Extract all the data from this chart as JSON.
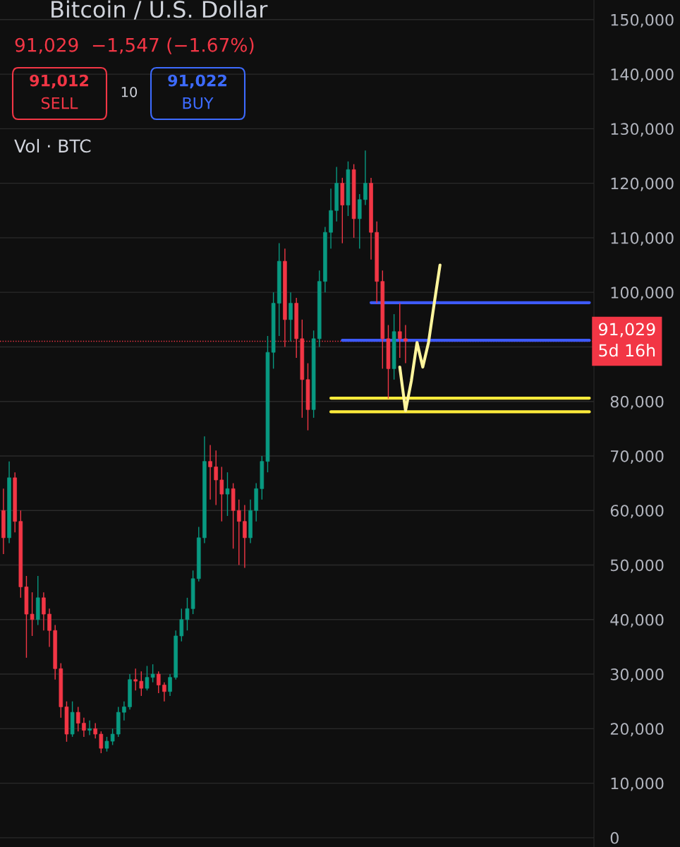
{
  "chart_data": {
    "type": "candlestick",
    "title": "Bitcoin / U.S. Dollar",
    "subtitle": "91,029  −1,547 (−1.67%)",
    "annotations": [
      "91,012",
      "SELL",
      "10",
      "91,022",
      "BUY",
      "Vol · BTC"
    ],
    "categories": [
      null,
      null,
      null,
      null,
      null,
      null,
      null,
      null,
      null,
      null,
      null,
      null,
      null,
      null,
      null,
      null,
      null,
      null,
      null,
      null,
      null,
      null,
      null,
      null,
      null,
      null,
      null,
      null,
      null,
      null,
      null,
      null,
      null,
      null,
      null,
      null,
      null,
      null,
      null,
      null,
      null,
      null,
      null,
      null,
      null,
      null,
      null,
      null,
      null,
      null,
      null,
      null,
      null,
      null,
      null,
      null,
      null,
      null,
      null,
      null,
      null,
      null,
      null,
      null,
      null,
      null,
      null,
      null,
      null,
      null,
      null,
      null,
      null,
      null,
      null,
      null,
      null,
      null,
      null,
      null,
      null,
      null,
      null,
      null,
      null,
      null,
      null,
      null,
      null,
      null,
      null,
      null,
      null,
      null,
      null,
      null,
      null,
      null,
      null,
      null,
      null,
      null,
      null
    ],
    "ohlc": [
      [
        60000,
        64000,
        52000,
        55000
      ],
      [
        55000,
        69000,
        54000,
        66000
      ],
      [
        66000,
        67000,
        56000,
        58000
      ],
      [
        58000,
        60000,
        44000,
        46000
      ],
      [
        46000,
        48000,
        33000,
        41000
      ],
      [
        41000,
        45000,
        37000,
        40000
      ],
      [
        40000,
        48000,
        39000,
        44000
      ],
      [
        44000,
        45000,
        38000,
        41000
      ],
      [
        41000,
        42000,
        35000,
        38000
      ],
      [
        38000,
        39000,
        29000,
        31000
      ],
      [
        31000,
        32000,
        22000,
        24000
      ],
      [
        24000,
        25000,
        17600,
        19000
      ],
      [
        19000,
        25000,
        18500,
        23000
      ],
      [
        23000,
        24000,
        19500,
        21000
      ],
      [
        21000,
        22000,
        18500,
        19700
      ],
      [
        19700,
        21500,
        18800,
        20000
      ],
      [
        20000,
        21000,
        18200,
        19000
      ],
      [
        19000,
        19500,
        15500,
        16400
      ],
      [
        16400,
        18500,
        15800,
        17700
      ],
      [
        17700,
        20000,
        17000,
        19000
      ],
      [
        19000,
        24000,
        18500,
        23000
      ],
      [
        23000,
        25000,
        21500,
        24000
      ],
      [
        24000,
        30000,
        23500,
        29000
      ],
      [
        29000,
        31000,
        27000,
        28700
      ],
      [
        28700,
        30500,
        26000,
        27400
      ],
      [
        27400,
        31500,
        27000,
        29400
      ],
      [
        29400,
        31800,
        28500,
        30000
      ],
      [
        30000,
        30500,
        26500,
        28000
      ],
      [
        28000,
        28500,
        25000,
        26800
      ],
      [
        26800,
        30000,
        26000,
        29400
      ],
      [
        29400,
        38000,
        29000,
        37000
      ],
      [
        37000,
        42000,
        36000,
        40000
      ],
      [
        40000,
        44000,
        38000,
        42000
      ],
      [
        42000,
        49000,
        41000,
        47500
      ],
      [
        47500,
        57000,
        47000,
        55000
      ],
      [
        55000,
        73600,
        54000,
        69000
      ],
      [
        69000,
        72000,
        62000,
        68000
      ],
      [
        68000,
        71000,
        61000,
        65600
      ],
      [
        65600,
        68000,
        58000,
        63000
      ],
      [
        63000,
        67000,
        59000,
        64000
      ],
      [
        64000,
        65000,
        53000,
        60000
      ],
      [
        60000,
        62000,
        50000,
        58000
      ],
      [
        58000,
        61000,
        49500,
        55000
      ],
      [
        55000,
        62000,
        54000,
        60000
      ],
      [
        60000,
        65000,
        58000,
        64000
      ],
      [
        64000,
        70000,
        62000,
        69000
      ],
      [
        69000,
        92000,
        67000,
        89000
      ],
      [
        89000,
        100000,
        86000,
        98000
      ],
      [
        98000,
        109000,
        92000,
        105700
      ],
      [
        105700,
        108000,
        90000,
        95000
      ],
      [
        95000,
        100000,
        91000,
        98000
      ],
      [
        98000,
        99000,
        88000,
        91500
      ],
      [
        91500,
        95000,
        77000,
        84000
      ],
      [
        84000,
        87000,
        74700,
        78500
      ],
      [
        78500,
        93000,
        77000,
        91500
      ],
      [
        91500,
        104000,
        90000,
        102000
      ],
      [
        102000,
        112000,
        100000,
        111000
      ],
      [
        111000,
        119000,
        108000,
        115000
      ],
      [
        115000,
        123000,
        113000,
        120000
      ],
      [
        120000,
        121000,
        109000,
        116000
      ],
      [
        116000,
        124000,
        114000,
        122500
      ],
      [
        122500,
        123500,
        110000,
        113500
      ],
      [
        113500,
        118000,
        108000,
        117000
      ],
      [
        117000,
        126000,
        116000,
        120000
      ],
      [
        120000,
        121000,
        106000,
        111000
      ],
      [
        111000,
        113000,
        98000,
        102000
      ],
      [
        102000,
        104000,
        86000,
        91500
      ],
      [
        91500,
        94000,
        80500,
        86000
      ],
      [
        86000,
        96000,
        84000,
        92800
      ],
      [
        92800,
        98000,
        88000,
        91500
      ],
      [
        91500,
        94000,
        87000,
        91029
      ],
      null,
      null,
      null,
      null,
      null,
      null,
      null,
      null,
      null,
      null,
      null,
      null,
      null,
      null,
      null,
      null,
      null,
      null,
      null,
      null,
      null,
      null,
      null,
      null,
      null,
      null,
      null,
      null,
      null,
      null,
      null,
      null
    ],
    "series": [
      {
        "type": "line",
        "color": "#3d5afe",
        "values": [
          null,
          null,
          null,
          null,
          null,
          null,
          null,
          null,
          null,
          null,
          null,
          null,
          null,
          null,
          null,
          null,
          null,
          null,
          null,
          null,
          null,
          null,
          null,
          null,
          null,
          null,
          null,
          null,
          null,
          null,
          null,
          null,
          null,
          null,
          null,
          null,
          null,
          null,
          null,
          null,
          null,
          null,
          null,
          null,
          null,
          null,
          null,
          null,
          null,
          null,
          null,
          null,
          null,
          null,
          null,
          null,
          null,
          null,
          null,
          null,
          null,
          null,
          null,
          null,
          98100,
          98100,
          98100,
          98100,
          98100,
          98100,
          98100,
          98100,
          98100,
          98100,
          98100,
          98100,
          98100,
          98100,
          98100,
          98100,
          98100,
          98100,
          98100,
          98100,
          98100,
          98100,
          98100,
          98100,
          98100,
          98100,
          98100,
          98100,
          98100,
          98100,
          98100,
          98100,
          98100,
          98100,
          98100,
          98100,
          98100,
          98100,
          98100
        ]
      },
      {
        "type": "line",
        "color": "#3d5afe",
        "values": [
          null,
          null,
          null,
          null,
          null,
          null,
          null,
          null,
          null,
          null,
          null,
          null,
          null,
          null,
          null,
          null,
          null,
          null,
          null,
          null,
          null,
          null,
          null,
          null,
          null,
          null,
          null,
          null,
          null,
          null,
          null,
          null,
          null,
          null,
          null,
          null,
          null,
          null,
          null,
          null,
          null,
          null,
          null,
          null,
          null,
          null,
          null,
          null,
          null,
          null,
          null,
          null,
          null,
          null,
          null,
          null,
          null,
          null,
          null,
          91200,
          91200,
          91200,
          91200,
          91200,
          91200,
          91200,
          91200,
          91200,
          91200,
          91200,
          91200,
          91200,
          91200,
          91200,
          91200,
          91200,
          91200,
          91200,
          91200,
          91200,
          91200,
          91200,
          91200,
          91200,
          91200,
          91200,
          91200,
          91200,
          91200,
          91200,
          91200,
          91200,
          91200,
          91200,
          91200,
          91200,
          91200,
          91200,
          91200,
          91200,
          91200,
          91200,
          91200
        ]
      },
      {
        "type": "line",
        "color": "#ffeb3b",
        "values": [
          null,
          null,
          null,
          null,
          null,
          null,
          null,
          null,
          null,
          null,
          null,
          null,
          null,
          null,
          null,
          null,
          null,
          null,
          null,
          null,
          null,
          null,
          null,
          null,
          null,
          null,
          null,
          null,
          null,
          null,
          null,
          null,
          null,
          null,
          null,
          null,
          null,
          null,
          null,
          null,
          null,
          null,
          null,
          null,
          null,
          null,
          null,
          null,
          null,
          null,
          null,
          null,
          null,
          null,
          null,
          null,
          null,
          80600,
          80600,
          80600,
          80600,
          80600,
          80600,
          80600,
          80600,
          80600,
          80600,
          80600,
          80600,
          80600,
          80600,
          80600,
          80600,
          80600,
          80600,
          80600,
          80600,
          80600,
          80600,
          80600,
          80600,
          80600,
          80600,
          80600,
          80600,
          80600,
          80600,
          80600,
          80600,
          80600,
          80600,
          80600,
          80600,
          80600,
          80600,
          80600,
          80600,
          80600,
          80600,
          80600,
          80600,
          80600,
          80600
        ]
      },
      {
        "type": "line",
        "color": "#ffeb3b",
        "values": [
          null,
          null,
          null,
          null,
          null,
          null,
          null,
          null,
          null,
          null,
          null,
          null,
          null,
          null,
          null,
          null,
          null,
          null,
          null,
          null,
          null,
          null,
          null,
          null,
          null,
          null,
          null,
          null,
          null,
          null,
          null,
          null,
          null,
          null,
          null,
          null,
          null,
          null,
          null,
          null,
          null,
          null,
          null,
          null,
          null,
          null,
          null,
          null,
          null,
          null,
          null,
          null,
          null,
          null,
          null,
          null,
          null,
          78100,
          78100,
          78100,
          78100,
          78100,
          78100,
          78100,
          78100,
          78100,
          78100,
          78100,
          78100,
          78100,
          78100,
          78100,
          78100,
          78100,
          78100,
          78100,
          78100,
          78100,
          78100,
          78100,
          78100,
          78100,
          78100,
          78100,
          78100,
          78100,
          78100,
          78100,
          78100,
          78100,
          78100,
          78100,
          78100,
          78100,
          78100,
          78100,
          78100,
          78100,
          78100,
          78100,
          78100,
          78100,
          78100
        ]
      },
      {
        "type": "line",
        "color": "#fff59d",
        "values": [
          null,
          null,
          null,
          null,
          null,
          null,
          null,
          null,
          null,
          null,
          null,
          null,
          null,
          null,
          null,
          null,
          null,
          null,
          null,
          null,
          null,
          null,
          null,
          null,
          null,
          null,
          null,
          null,
          null,
          null,
          null,
          null,
          null,
          null,
          null,
          null,
          null,
          null,
          null,
          null,
          null,
          null,
          null,
          null,
          null,
          null,
          null,
          null,
          null,
          null,
          null,
          null,
          null,
          null,
          null,
          null,
          null,
          null,
          null,
          null,
          null,
          null,
          null,
          null,
          null,
          null,
          null,
          null,
          null,
          86300,
          78300,
          83700,
          90800,
          86300,
          90800,
          98000,
          105000,
          null,
          null,
          null,
          null,
          null,
          null,
          null,
          null,
          null,
          null,
          null,
          null,
          null,
          null,
          null,
          null,
          null,
          null,
          null,
          null,
          null,
          null,
          null,
          null,
          null,
          null
        ]
      }
    ],
    "ref_lines": [
      {
        "axis": "y",
        "value": 91029,
        "label": "91,029\n5d 16h",
        "color": "#f23645",
        "line_style": "dotted"
      }
    ],
    "ylim": [
      -1700,
      153600
    ],
    "yticks": [
      {
        "value": 0,
        "label": "0"
      },
      {
        "value": 10000,
        "label": "10,000"
      },
      {
        "value": 20000,
        "label": "20,000"
      },
      {
        "value": 30000,
        "label": "30,000"
      },
      {
        "value": 40000,
        "label": "40,000"
      },
      {
        "value": 50000,
        "label": "50,000"
      },
      {
        "value": 60000,
        "label": "60,000"
      },
      {
        "value": 70000,
        "label": "70,000"
      },
      {
        "value": 80000,
        "label": "80,000"
      },
      {
        "value": 90000,
        "label": null
      },
      {
        "value": 100000,
        "label": "100,000"
      },
      {
        "value": 110000,
        "label": "110,000"
      },
      {
        "value": 120000,
        "label": "120,000"
      },
      {
        "value": 130000,
        "label": "130,000"
      },
      {
        "value": 140000,
        "label": "140,000"
      },
      {
        "value": 150000,
        "label": "150,000"
      }
    ],
    "tick_labels": "y",
    "grid": "y",
    "legend": false
  }
}
